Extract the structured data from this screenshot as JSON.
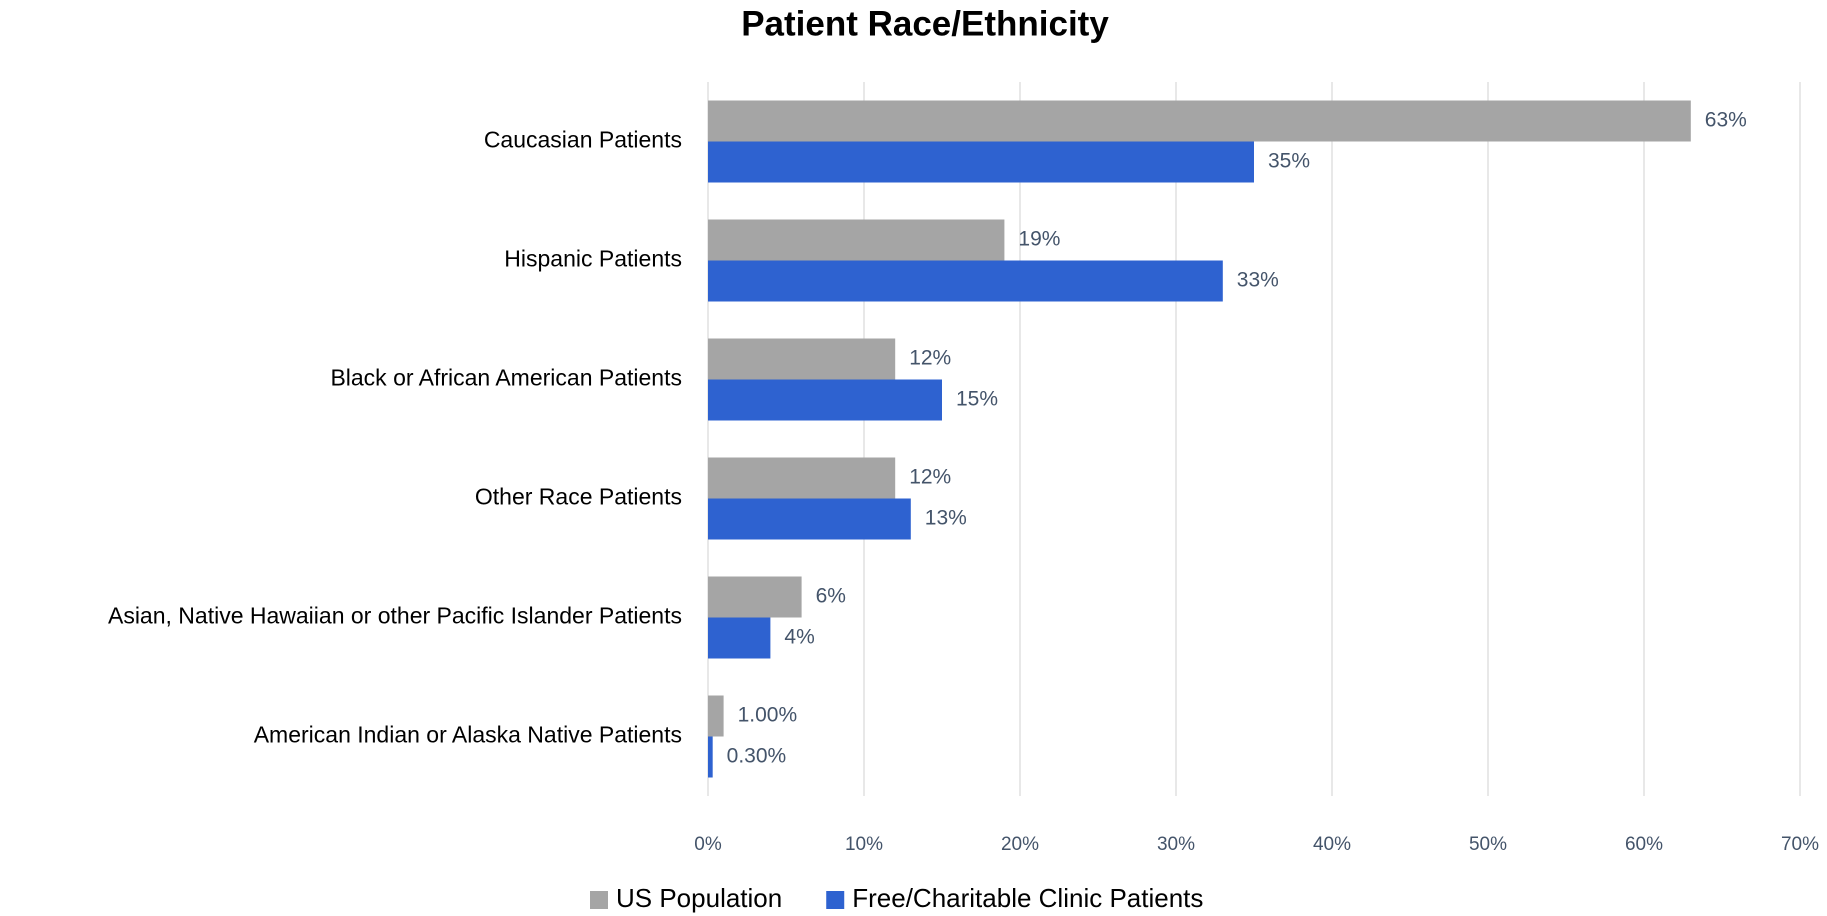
{
  "chart_data": {
    "type": "bar",
    "orientation": "horizontal",
    "title": "Patient Race/Ethnicity",
    "categories": [
      "Caucasian Patients",
      "Hispanic Patients",
      "Black or African American Patients",
      "Other Race Patients",
      "Asian, Native Hawaiian or other Pacific Islander Patients",
      "American Indian or Alaska Native Patients"
    ],
    "series": [
      {
        "name": "US Population",
        "color": "#a5a5a5",
        "values": [
          63,
          19,
          12,
          12,
          6,
          1
        ],
        "value_labels": [
          "63%",
          "19%",
          "12%",
          "12%",
          "6%",
          "1.00%"
        ]
      },
      {
        "name": "Free/Charitable Clinic Patients",
        "color": "#2e62d0",
        "values": [
          35,
          33,
          15,
          13,
          4,
          0.3
        ],
        "value_labels": [
          "35%",
          "33%",
          "15%",
          "13%",
          "4%",
          "0.30%"
        ]
      }
    ],
    "xlim": [
      0,
      70
    ],
    "xticks": [
      {
        "value": 0,
        "label": "0%"
      },
      {
        "value": 10,
        "label": "10%"
      },
      {
        "value": 20,
        "label": "20%"
      },
      {
        "value": 30,
        "label": "30%"
      },
      {
        "value": 40,
        "label": "40%"
      },
      {
        "value": 50,
        "label": "50%"
      },
      {
        "value": 60,
        "label": "60%"
      },
      {
        "value": 70,
        "label": "70%"
      }
    ],
    "grid": true,
    "legend": "bottom"
  }
}
